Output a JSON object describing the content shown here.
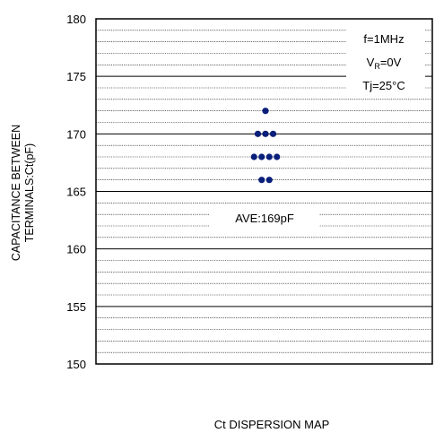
{
  "chart_data": {
    "type": "scatter",
    "title": "",
    "xlabel": "Ct DISPERSION MAP",
    "ylabel_line1": "CAPACITANCE BETWEEN",
    "ylabel_line2": "TERMINALS:Ct(pF)",
    "ylim": [
      150,
      180
    ],
    "y_ticks": [
      "150",
      "155",
      "160",
      "165",
      "170",
      "175",
      "180"
    ],
    "minor_grid_step": 1,
    "grid": true,
    "marker_color": "#0a1f7a",
    "conditions": {
      "freq": "f=1MHz",
      "vr_main": "V",
      "vr_sub": "R",
      "vr_value": "=0V",
      "tj": "Tj=25°C"
    },
    "average_label": "AVE:169pF",
    "average_value": 169,
    "points": [
      {
        "y": 172,
        "count": 1
      },
      {
        "y": 170,
        "count": 3
      },
      {
        "y": 168,
        "count": 4
      },
      {
        "y": 166,
        "count": 2
      }
    ]
  }
}
